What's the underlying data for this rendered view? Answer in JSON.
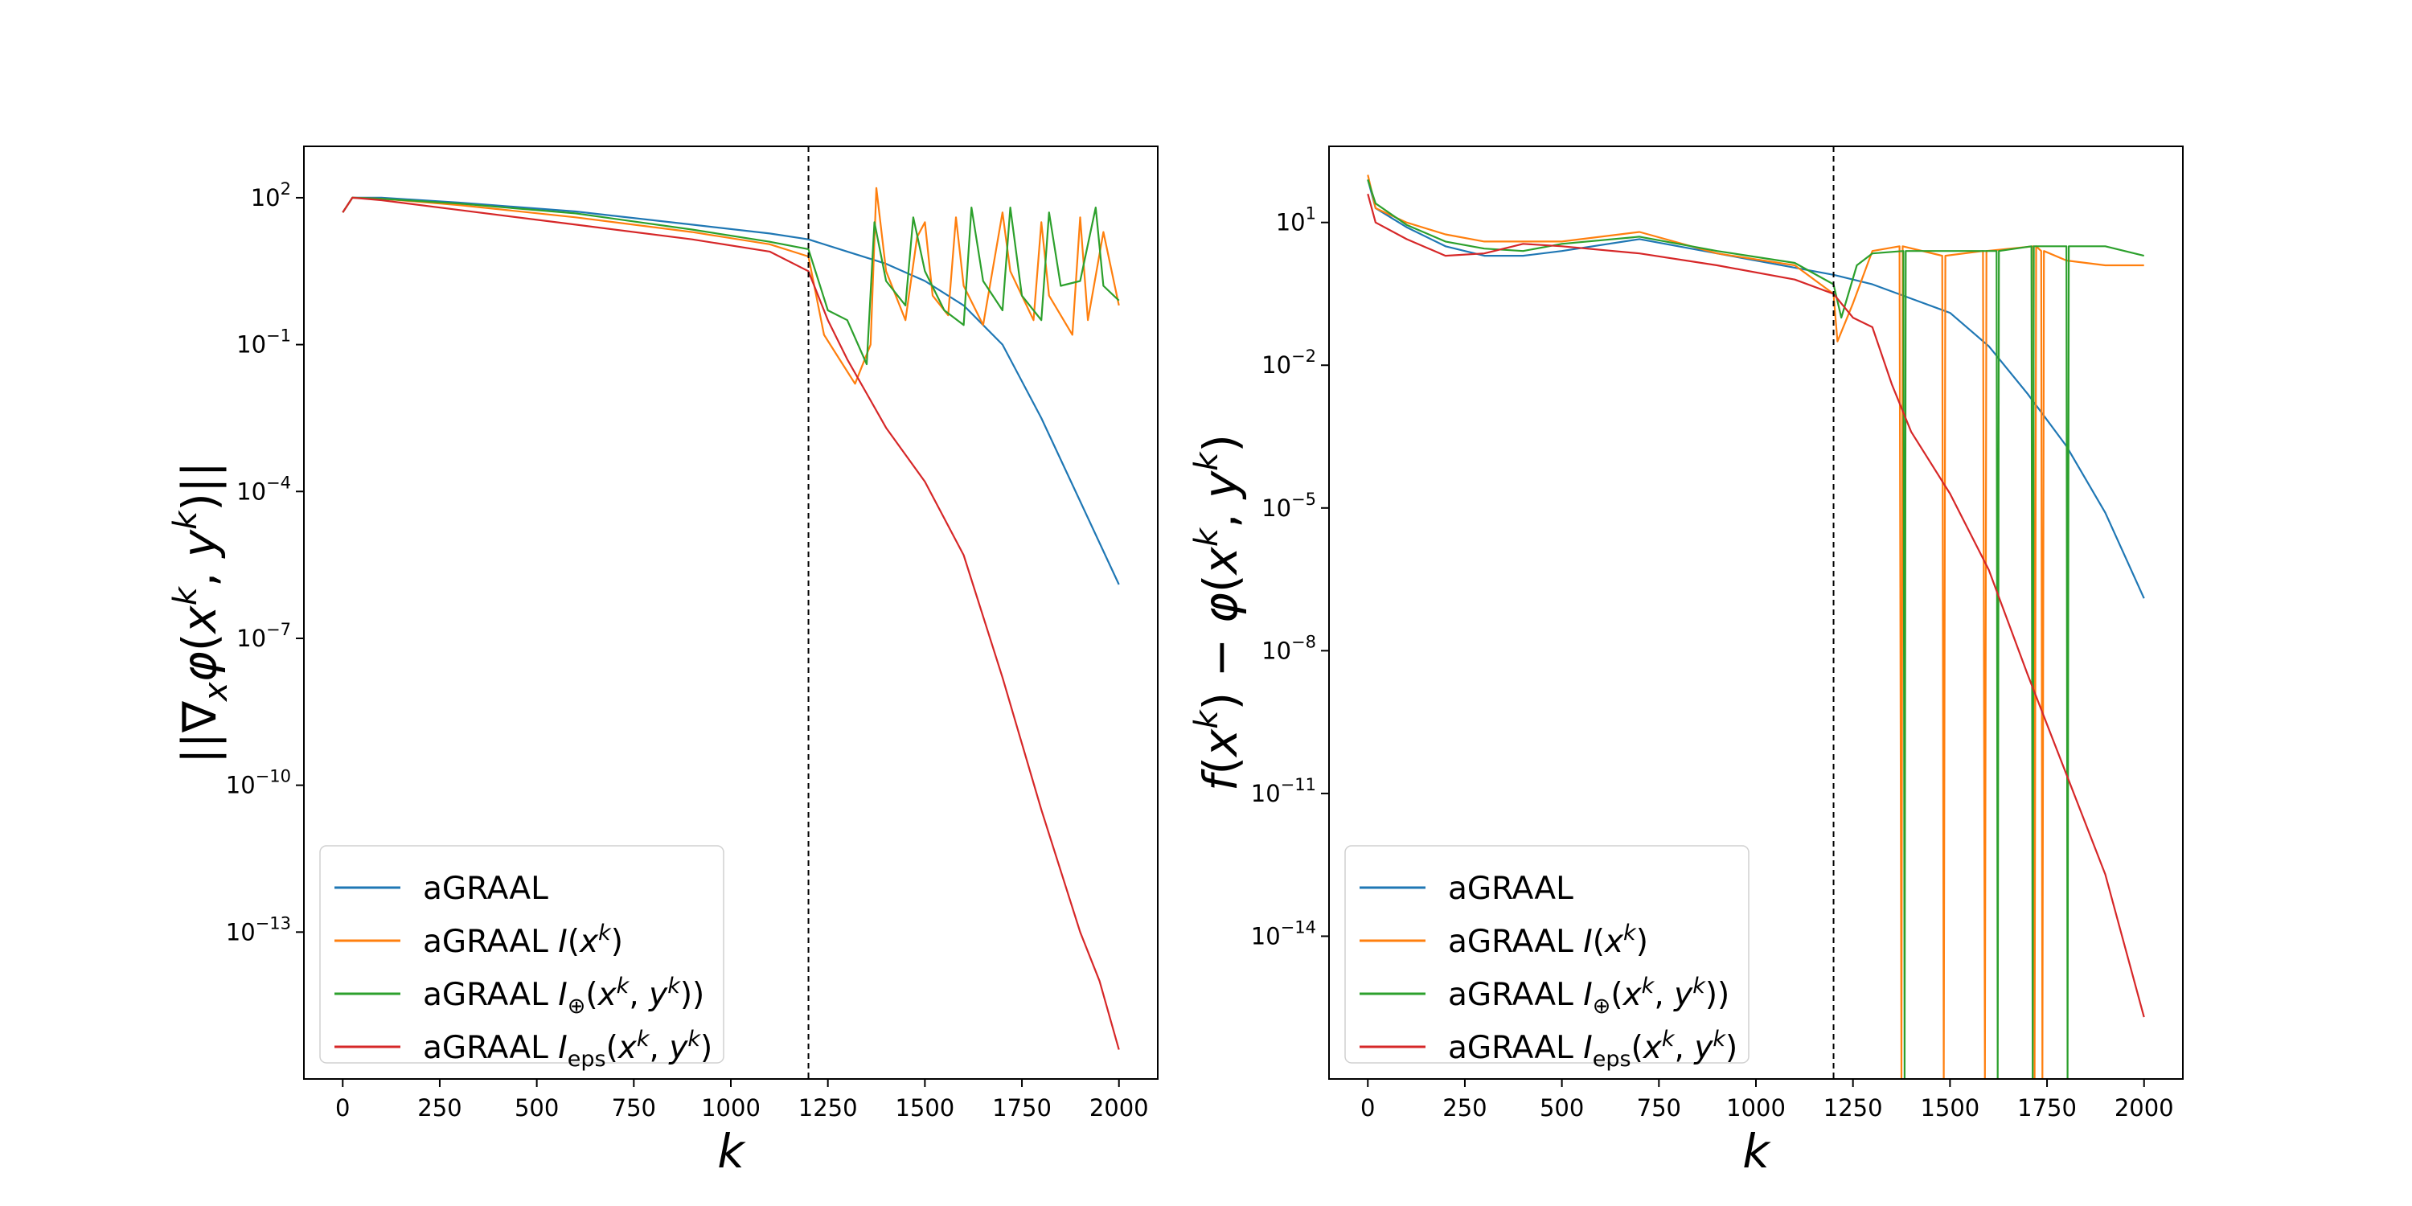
{
  "chart_data": [
    {
      "type": "line",
      "id": "left",
      "ylabel": "||∇ₓφ(xᵏ, yᵏ)||",
      "xlabel": "k",
      "xlim": [
        -100,
        2100
      ],
      "ylog_lim": [
        -16.0,
        3.05
      ],
      "yscale": "log",
      "x_ticks": [
        0,
        250,
        500,
        750,
        1000,
        1250,
        1500,
        1750,
        2000
      ],
      "y_ticks": [
        2,
        -1,
        -4,
        -7,
        -10,
        -13
      ],
      "vline_x": 1200,
      "legend_position": "lower-left",
      "series": [
        {
          "name": "aGRAAL",
          "color": "#1f77b4",
          "points": [
            [
              0,
              1.7
            ],
            [
              25,
              2.0
            ],
            [
              100,
              2.0
            ],
            [
              300,
              1.9
            ],
            [
              600,
              1.72
            ],
            [
              900,
              1.45
            ],
            [
              1100,
              1.27
            ],
            [
              1200,
              1.15
            ],
            [
              1300,
              0.9
            ],
            [
              1400,
              0.65
            ],
            [
              1500,
              0.3
            ],
            [
              1600,
              -0.2
            ],
            [
              1700,
              -1.0
            ],
            [
              1800,
              -2.5
            ],
            [
              1900,
              -4.2
            ],
            [
              2000,
              -5.9
            ]
          ]
        },
        {
          "name": "aGRAAL I(x^k)",
          "color": "#ff7f0e",
          "points": [
            [
              0,
              1.7
            ],
            [
              25,
              2.0
            ],
            [
              100,
              1.98
            ],
            [
              300,
              1.85
            ],
            [
              600,
              1.6
            ],
            [
              900,
              1.3
            ],
            [
              1100,
              1.05
            ],
            [
              1200,
              0.8
            ],
            [
              1240,
              -0.8
            ],
            [
              1280,
              -1.3
            ],
            [
              1320,
              -1.8
            ],
            [
              1360,
              -1.0
            ],
            [
              1375,
              2.2
            ],
            [
              1400,
              0.5
            ],
            [
              1450,
              -0.5
            ],
            [
              1480,
              1.2
            ],
            [
              1500,
              1.5
            ],
            [
              1520,
              0.0
            ],
            [
              1560,
              -0.4
            ],
            [
              1580,
              1.6
            ],
            [
              1600,
              0.2
            ],
            [
              1650,
              -0.6
            ],
            [
              1700,
              1.7
            ],
            [
              1720,
              0.5
            ],
            [
              1780,
              -0.5
            ],
            [
              1800,
              1.5
            ],
            [
              1820,
              0.0
            ],
            [
              1880,
              -0.8
            ],
            [
              1900,
              1.6
            ],
            [
              1920,
              -0.5
            ],
            [
              1960,
              1.3
            ],
            [
              2000,
              -0.2
            ]
          ]
        },
        {
          "name": "aGRAAL I⊕(x^k, y^k))",
          "color": "#2ca02c",
          "points": [
            [
              0,
              1.7
            ],
            [
              25,
              2.0
            ],
            [
              100,
              1.98
            ],
            [
              300,
              1.88
            ],
            [
              600,
              1.68
            ],
            [
              900,
              1.35
            ],
            [
              1100,
              1.1
            ],
            [
              1200,
              0.95
            ],
            [
              1250,
              -0.3
            ],
            [
              1300,
              -0.5
            ],
            [
              1350,
              -1.4
            ],
            [
              1370,
              1.5
            ],
            [
              1400,
              0.3
            ],
            [
              1450,
              -0.2
            ],
            [
              1470,
              1.6
            ],
            [
              1500,
              0.5
            ],
            [
              1550,
              -0.3
            ],
            [
              1600,
              -0.6
            ],
            [
              1620,
              1.8
            ],
            [
              1650,
              0.3
            ],
            [
              1700,
              -0.3
            ],
            [
              1720,
              1.8
            ],
            [
              1750,
              0.0
            ],
            [
              1800,
              -0.5
            ],
            [
              1820,
              1.7
            ],
            [
              1850,
              0.2
            ],
            [
              1900,
              0.3
            ],
            [
              1940,
              1.8
            ],
            [
              1960,
              0.2
            ],
            [
              2000,
              -0.1
            ]
          ]
        },
        {
          "name": "aGRAAL Ieps(x^k, y^k)",
          "color": "#d62728",
          "points": [
            [
              0,
              1.7
            ],
            [
              25,
              2.0
            ],
            [
              100,
              1.95
            ],
            [
              300,
              1.75
            ],
            [
              600,
              1.45
            ],
            [
              900,
              1.15
            ],
            [
              1100,
              0.9
            ],
            [
              1200,
              0.5
            ],
            [
              1250,
              -0.5
            ],
            [
              1300,
              -1.3
            ],
            [
              1350,
              -2.0
            ],
            [
              1400,
              -2.7
            ],
            [
              1500,
              -3.8
            ],
            [
              1600,
              -5.3
            ],
            [
              1700,
              -7.8
            ],
            [
              1800,
              -10.5
            ],
            [
              1900,
              -13.0
            ],
            [
              1950,
              -14.0
            ],
            [
              2000,
              -15.4
            ]
          ]
        }
      ]
    },
    {
      "type": "line",
      "id": "right",
      "ylabel": "f(xᵏ) − φ(xᵏ, yᵏ)",
      "xlabel": "k",
      "xlim": [
        -100,
        2100
      ],
      "ylog_lim": [
        -17.0,
        2.6
      ],
      "yscale": "log",
      "x_ticks": [
        0,
        250,
        500,
        750,
        1000,
        1250,
        1500,
        1750,
        2000
      ],
      "y_ticks": [
        1,
        -2,
        -5,
        -8,
        -11,
        -14
      ],
      "vline_x": 1200,
      "legend_position": "lower-left",
      "series": [
        {
          "name": "aGRAAL",
          "color": "#1f77b4",
          "points": [
            [
              0,
              1.9
            ],
            [
              20,
              1.3
            ],
            [
              100,
              0.9
            ],
            [
              200,
              0.5
            ],
            [
              300,
              0.3
            ],
            [
              400,
              0.3
            ],
            [
              500,
              0.4
            ],
            [
              700,
              0.65
            ],
            [
              900,
              0.35
            ],
            [
              1100,
              0.05
            ],
            [
              1200,
              -0.1
            ],
            [
              1300,
              -0.3
            ],
            [
              1400,
              -0.6
            ],
            [
              1500,
              -0.9
            ],
            [
              1600,
              -1.6
            ],
            [
              1700,
              -2.6
            ],
            [
              1800,
              -3.7
            ],
            [
              1900,
              -5.1
            ],
            [
              2000,
              -6.9
            ]
          ]
        },
        {
          "name": "aGRAAL I(x^k)",
          "color": "#ff7f0e",
          "points": [
            [
              0,
              2.0
            ],
            [
              20,
              1.3
            ],
            [
              100,
              1.0
            ],
            [
              200,
              0.75
            ],
            [
              300,
              0.6
            ],
            [
              400,
              0.6
            ],
            [
              500,
              0.6
            ],
            [
              700,
              0.8
            ],
            [
              900,
              0.35
            ],
            [
              1100,
              0.1
            ],
            [
              1200,
              -0.5
            ],
            [
              1210,
              -1.5
            ],
            [
              1250,
              -0.7
            ],
            [
              1300,
              0.4
            ],
            [
              1370,
              0.5
            ],
            [
              1375,
              -17
            ],
            [
              1378,
              0.5
            ],
            [
              1480,
              0.3
            ],
            [
              1484,
              -17
            ],
            [
              1488,
              0.3
            ],
            [
              1585,
              0.4
            ],
            [
              1590,
              -17
            ],
            [
              1594,
              0.4
            ],
            [
              1715,
              0.5
            ],
            [
              1718,
              -17
            ],
            [
              1722,
              0.5
            ],
            [
              1735,
              0.4
            ],
            [
              1738,
              -17
            ],
            [
              1742,
              0.4
            ],
            [
              1800,
              0.2
            ],
            [
              1900,
              0.1
            ],
            [
              2000,
              0.1
            ]
          ]
        },
        {
          "name": "aGRAAL I⊕(x^k, y^k))",
          "color": "#2ca02c",
          "points": [
            [
              0,
              1.9
            ],
            [
              20,
              1.4
            ],
            [
              100,
              0.95
            ],
            [
              200,
              0.6
            ],
            [
              300,
              0.45
            ],
            [
              400,
              0.4
            ],
            [
              500,
              0.55
            ],
            [
              700,
              0.7
            ],
            [
              900,
              0.4
            ],
            [
              1100,
              0.15
            ],
            [
              1200,
              -0.3
            ],
            [
              1220,
              -1.0
            ],
            [
              1260,
              0.1
            ],
            [
              1300,
              0.35
            ],
            [
              1380,
              0.4
            ],
            [
              1383,
              -17
            ],
            [
              1386,
              0.4
            ],
            [
              1620,
              0.4
            ],
            [
              1623,
              -17
            ],
            [
              1626,
              0.4
            ],
            [
              1710,
              0.5
            ],
            [
              1713,
              -17
            ],
            [
              1716,
              0.5
            ],
            [
              1800,
              0.5
            ],
            [
              1803,
              -17
            ],
            [
              1806,
              0.5
            ],
            [
              1900,
              0.5
            ],
            [
              2000,
              0.3
            ]
          ]
        },
        {
          "name": "aGRAAL Ieps(x^k, y^k)",
          "color": "#d62728",
          "points": [
            [
              0,
              1.6
            ],
            [
              20,
              1.0
            ],
            [
              100,
              0.65
            ],
            [
              200,
              0.3
            ],
            [
              300,
              0.35
            ],
            [
              400,
              0.55
            ],
            [
              500,
              0.5
            ],
            [
              700,
              0.35
            ],
            [
              900,
              0.1
            ],
            [
              1100,
              -0.2
            ],
            [
              1200,
              -0.5
            ],
            [
              1250,
              -1.0
            ],
            [
              1300,
              -1.2
            ],
            [
              1350,
              -2.4
            ],
            [
              1400,
              -3.4
            ],
            [
              1500,
              -4.7
            ],
            [
              1600,
              -6.3
            ],
            [
              1700,
              -8.5
            ],
            [
              1800,
              -10.6
            ],
            [
              1900,
              -12.7
            ],
            [
              2000,
              -15.7
            ]
          ]
        }
      ]
    }
  ]
}
